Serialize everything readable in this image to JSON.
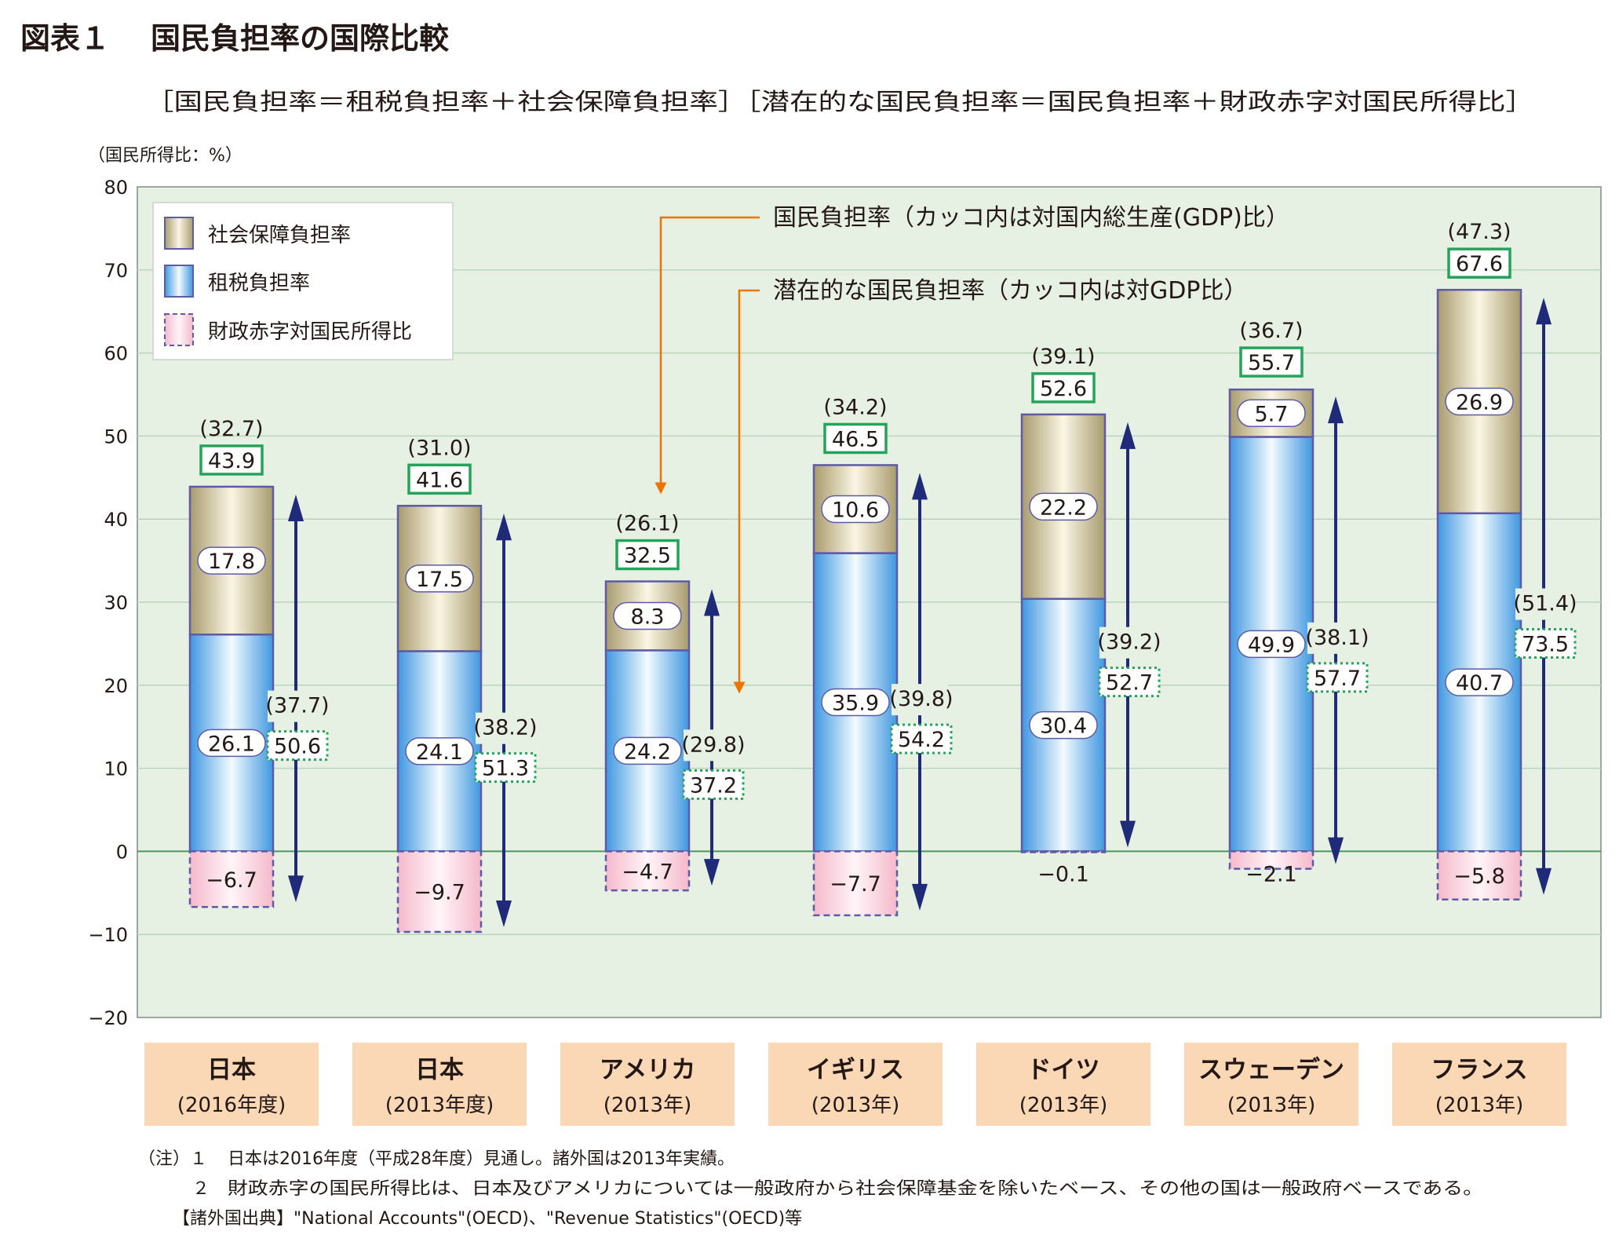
{
  "page": {
    "figure_label": "図表１",
    "title": "国民負担率の国際比較",
    "subtitle": "［国民負担率＝租税負担率＋社会保障負担率］［潜在的な国民負担率＝国民負担率＋財政赤字対国民所得比］",
    "annotation_1": "国民負担率（カッコ内は対国内総生産(GDP)比）",
    "annotation_2": "潜在的な国民負担率（カッコ内は対GDP比）",
    "note_1_prefix": "（注）１",
    "note_1": "日本は2016年度（平成28年度）見通し。諸外国は2013年実績。",
    "note_2_prefix": "２",
    "note_2": "財政赤字の国民所得比は、日本及びアメリカについては一般政府から社会保障基金を除いたベース、その他の国は一般政府ベースである。",
    "note_3": "【諸外国出典】\"National Accounts\"(OECD)、\"Revenue Statistics\"(OECD)等"
  },
  "colors": {
    "plot_bg": "#e7f1e3",
    "social": "#d8c99a",
    "tax": "#5eb2ec",
    "deficit": "#f9d5e0",
    "outline": "#5d5ba6",
    "arrow": "#1f2a78",
    "green_box": "#26a35a",
    "orange": "#ee7300",
    "category_box": "#fad7b5"
  },
  "chart_data": {
    "type": "bar",
    "stacked": true,
    "ylabel": "（国民所得比：%）",
    "ylim": [
      -20,
      80
    ],
    "yticks": [
      -20,
      -10,
      0,
      10,
      20,
      30,
      40,
      50,
      60,
      70,
      80
    ],
    "grid": true,
    "legend_position": "top-left",
    "categories": [
      {
        "name": "日本",
        "sub": "(2016年度)"
      },
      {
        "name": "日本",
        "sub": "(2013年度)"
      },
      {
        "name": "アメリカ",
        "sub": "(2013年)"
      },
      {
        "name": "イギリス",
        "sub": "(2013年)"
      },
      {
        "name": "ドイツ",
        "sub": "(2013年)"
      },
      {
        "name": "スウェーデン",
        "sub": "(2013年)"
      },
      {
        "name": "フランス",
        "sub": "(2013年)"
      }
    ],
    "series": [
      {
        "name": "租税負担率",
        "key": "tax",
        "values": [
          26.1,
          24.1,
          24.2,
          35.9,
          30.4,
          49.9,
          40.7
        ],
        "labels": [
          "26.1",
          "24.1",
          "24.2",
          "35.9",
          "30.4",
          "49.9",
          "40.7"
        ]
      },
      {
        "name": "社会保障負担率",
        "key": "social",
        "values": [
          17.8,
          17.5,
          8.3,
          10.6,
          22.2,
          5.7,
          26.9
        ],
        "labels": [
          "17.8",
          "17.5",
          "8.3",
          "10.6",
          "22.2",
          "5.7",
          "26.9"
        ]
      },
      {
        "name": "財政赤字対国民所得比",
        "key": "deficit",
        "values": [
          -6.7,
          -9.7,
          -4.7,
          -7.7,
          -0.1,
          -2.1,
          -5.8
        ],
        "labels": [
          "−6.7",
          "−9.7",
          "−4.7",
          "−7.7",
          "−0.1",
          "−2.1",
          "−5.8"
        ]
      }
    ],
    "legend_order": [
      "社会保障負担率",
      "租税負担率",
      "財政赤字対国民所得比"
    ],
    "national_burden": [
      43.9,
      41.6,
      32.5,
      46.5,
      52.6,
      55.7,
      67.6
    ],
    "national_burden_labels": [
      "43.9",
      "41.6",
      "32.5",
      "46.5",
      "52.6",
      "55.7",
      "67.6"
    ],
    "national_burden_gdp_labels": [
      "(32.7)",
      "(31.0)",
      "(26.1)",
      "(34.2)",
      "(39.1)",
      "(36.7)",
      "(47.3)"
    ],
    "potential_burden": [
      50.6,
      51.3,
      37.2,
      54.2,
      52.7,
      57.7,
      73.5
    ],
    "potential_burden_labels": [
      "50.6",
      "51.3",
      "37.2",
      "54.2",
      "52.7",
      "57.7",
      "73.5"
    ],
    "potential_burden_gdp_labels": [
      "(37.7)",
      "(38.2)",
      "(29.8)",
      "(39.8)",
      "(39.2)",
      "(38.1)",
      "(51.4)"
    ]
  }
}
